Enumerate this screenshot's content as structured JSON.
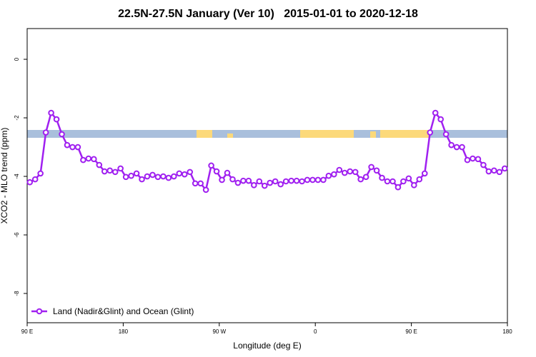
{
  "chart_data": {
    "type": "line",
    "title": "22.5N-27.5N January (Ver 10)   2015-01-01 to 2020-12-18",
    "xlabel": "Longitude (deg E)",
    "ylabel": "XCO2 - MLO trend (ppm)",
    "xlim": [
      90,
      540
    ],
    "ylim": [
      -9,
      1.05
    ],
    "xticks": [
      {
        "value": 90,
        "label": "90 E"
      },
      {
        "value": 180,
        "label": "180"
      },
      {
        "value": 270,
        "label": "90 W"
      },
      {
        "value": 360,
        "label": "0"
      },
      {
        "value": 450,
        "label": "90 E"
      },
      {
        "value": 540,
        "label": "180"
      }
    ],
    "yticks": [
      0,
      -2,
      -4,
      -6,
      -8
    ],
    "legend": "bottom-left",
    "x": [
      92.5,
      97.5,
      102.5,
      107.5,
      112.5,
      117.5,
      122.5,
      127.5,
      132.5,
      137.5,
      142.5,
      147.5,
      152.5,
      157.5,
      162.5,
      167.5,
      172.5,
      177.5,
      182.5,
      187.5,
      192.5,
      197.5,
      202.5,
      207.5,
      212.5,
      217.5,
      222.5,
      227.5,
      232.5,
      237.5,
      242.5,
      247.5,
      252.5,
      257.5,
      262.5,
      267.5,
      272.5,
      277.5,
      282.5,
      287.5,
      292.5,
      297.5,
      302.5,
      307.5,
      312.5,
      317.5,
      322.5,
      327.5,
      332.5,
      337.5,
      342.5,
      347.5,
      352.5,
      357.5,
      362.5,
      367.5,
      372.5,
      377.5,
      382.5,
      387.5,
      392.5,
      397.5,
      402.5,
      407.5,
      412.5,
      417.5,
      422.5,
      427.5,
      432.5,
      437.5,
      442.5,
      447.5,
      452.5,
      457.5,
      462.5,
      467.5,
      472.5,
      477.5,
      482.5,
      487.5,
      492.5,
      497.5,
      502.5,
      507.5,
      512.5,
      517.5,
      522.5,
      527.5,
      532.5,
      537.5
    ],
    "series": [
      {
        "name": "Land (Nadir&Glint) and Ocean (Glint)",
        "color": "#a020f0",
        "values": [
          -4.2,
          -4.1,
          -3.9,
          -2.5,
          -1.83,
          -2.05,
          -2.56,
          -2.93,
          -3.0,
          -3.0,
          -3.44,
          -3.39,
          -3.41,
          -3.61,
          -3.83,
          -3.8,
          -3.85,
          -3.73,
          -4.02,
          -3.98,
          -3.9,
          -4.1,
          -4.0,
          -3.95,
          -4.02,
          -4.0,
          -4.05,
          -4.0,
          -3.9,
          -3.93,
          -3.85,
          -4.24,
          -4.24,
          -4.46,
          -3.63,
          -3.83,
          -4.12,
          -3.88,
          -4.1,
          -4.22,
          -4.15,
          -4.15,
          -4.3,
          -4.17,
          -4.32,
          -4.22,
          -4.17,
          -4.27,
          -4.17,
          -4.15,
          -4.15,
          -4.17,
          -4.12,
          -4.12,
          -4.12,
          -4.12,
          -3.98,
          -3.93,
          -3.78,
          -3.88,
          -3.83,
          -3.85,
          -4.1,
          -4.02,
          -3.68,
          -3.8,
          -4.05,
          -4.17,
          -4.17,
          -4.37,
          -4.17,
          -4.07,
          -4.3,
          -4.1,
          -3.9,
          -2.5,
          -1.83,
          -2.05,
          -2.56,
          -2.93,
          -3.0,
          -3.0,
          -3.44,
          -3.39,
          -3.41,
          -3.61,
          -3.83,
          -3.8,
          -3.85,
          -3.73
        ]
      }
    ]
  }
}
